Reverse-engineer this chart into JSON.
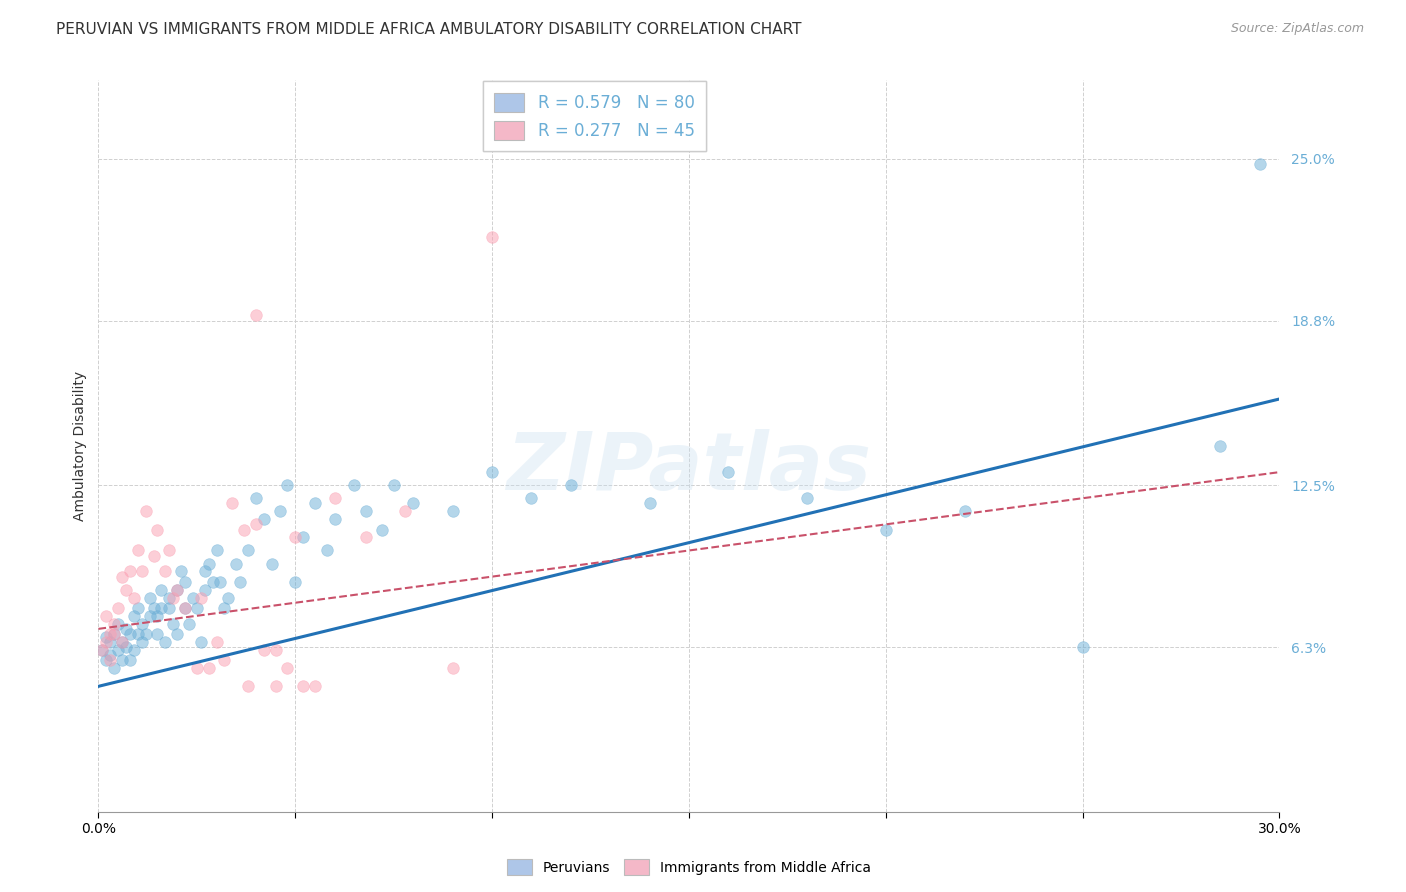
{
  "title": "PERUVIAN VS IMMIGRANTS FROM MIDDLE AFRICA AMBULATORY DISABILITY CORRELATION CHART",
  "source": "Source: ZipAtlas.com",
  "ylabel": "Ambulatory Disability",
  "xlim": [
    0.0,
    0.3
  ],
  "ylim": [
    0.0,
    0.28
  ],
  "ytick_labels": [
    "6.3%",
    "12.5%",
    "18.8%",
    "25.0%"
  ],
  "ytick_values": [
    0.063,
    0.125,
    0.188,
    0.25
  ],
  "legend_entries": [
    {
      "label": "R = 0.579   N = 80",
      "color": "#aec6e8"
    },
    {
      "label": "R = 0.277   N = 45",
      "color": "#f4b8c8"
    }
  ],
  "blue_color": "#6baed6",
  "pink_color": "#fb9eb1",
  "blue_line_color": "#2171b5",
  "pink_line_color": "#c9516a",
  "watermark": "ZIPatlas",
  "blue_scatter": [
    [
      0.001,
      0.062
    ],
    [
      0.002,
      0.058
    ],
    [
      0.002,
      0.067
    ],
    [
      0.003,
      0.06
    ],
    [
      0.003,
      0.065
    ],
    [
      0.004,
      0.055
    ],
    [
      0.004,
      0.068
    ],
    [
      0.005,
      0.062
    ],
    [
      0.005,
      0.072
    ],
    [
      0.006,
      0.058
    ],
    [
      0.006,
      0.065
    ],
    [
      0.007,
      0.07
    ],
    [
      0.007,
      0.063
    ],
    [
      0.008,
      0.068
    ],
    [
      0.008,
      0.058
    ],
    [
      0.009,
      0.075
    ],
    [
      0.009,
      0.062
    ],
    [
      0.01,
      0.068
    ],
    [
      0.01,
      0.078
    ],
    [
      0.011,
      0.065
    ],
    [
      0.011,
      0.072
    ],
    [
      0.012,
      0.068
    ],
    [
      0.013,
      0.075
    ],
    [
      0.013,
      0.082
    ],
    [
      0.014,
      0.078
    ],
    [
      0.015,
      0.068
    ],
    [
      0.015,
      0.075
    ],
    [
      0.016,
      0.085
    ],
    [
      0.016,
      0.078
    ],
    [
      0.017,
      0.065
    ],
    [
      0.018,
      0.082
    ],
    [
      0.018,
      0.078
    ],
    [
      0.019,
      0.072
    ],
    [
      0.02,
      0.068
    ],
    [
      0.02,
      0.085
    ],
    [
      0.021,
      0.092
    ],
    [
      0.022,
      0.088
    ],
    [
      0.022,
      0.078
    ],
    [
      0.023,
      0.072
    ],
    [
      0.024,
      0.082
    ],
    [
      0.025,
      0.078
    ],
    [
      0.026,
      0.065
    ],
    [
      0.027,
      0.092
    ],
    [
      0.027,
      0.085
    ],
    [
      0.028,
      0.095
    ],
    [
      0.029,
      0.088
    ],
    [
      0.03,
      0.1
    ],
    [
      0.031,
      0.088
    ],
    [
      0.032,
      0.078
    ],
    [
      0.033,
      0.082
    ],
    [
      0.035,
      0.095
    ],
    [
      0.036,
      0.088
    ],
    [
      0.038,
      0.1
    ],
    [
      0.04,
      0.12
    ],
    [
      0.042,
      0.112
    ],
    [
      0.044,
      0.095
    ],
    [
      0.046,
      0.115
    ],
    [
      0.048,
      0.125
    ],
    [
      0.05,
      0.088
    ],
    [
      0.052,
      0.105
    ],
    [
      0.055,
      0.118
    ],
    [
      0.058,
      0.1
    ],
    [
      0.06,
      0.112
    ],
    [
      0.065,
      0.125
    ],
    [
      0.068,
      0.115
    ],
    [
      0.072,
      0.108
    ],
    [
      0.075,
      0.125
    ],
    [
      0.08,
      0.118
    ],
    [
      0.09,
      0.115
    ],
    [
      0.1,
      0.13
    ],
    [
      0.11,
      0.12
    ],
    [
      0.12,
      0.125
    ],
    [
      0.14,
      0.118
    ],
    [
      0.16,
      0.13
    ],
    [
      0.18,
      0.12
    ],
    [
      0.2,
      0.108
    ],
    [
      0.22,
      0.115
    ],
    [
      0.25,
      0.063
    ],
    [
      0.285,
      0.14
    ],
    [
      0.295,
      0.248
    ]
  ],
  "pink_scatter": [
    [
      0.001,
      0.062
    ],
    [
      0.002,
      0.065
    ],
    [
      0.002,
      0.075
    ],
    [
      0.003,
      0.068
    ],
    [
      0.003,
      0.058
    ],
    [
      0.004,
      0.072
    ],
    [
      0.004,
      0.068
    ],
    [
      0.005,
      0.078
    ],
    [
      0.006,
      0.065
    ],
    [
      0.006,
      0.09
    ],
    [
      0.007,
      0.085
    ],
    [
      0.008,
      0.092
    ],
    [
      0.009,
      0.082
    ],
    [
      0.01,
      0.1
    ],
    [
      0.011,
      0.092
    ],
    [
      0.012,
      0.115
    ],
    [
      0.014,
      0.098
    ],
    [
      0.015,
      0.108
    ],
    [
      0.017,
      0.092
    ],
    [
      0.018,
      0.1
    ],
    [
      0.019,
      0.082
    ],
    [
      0.02,
      0.085
    ],
    [
      0.022,
      0.078
    ],
    [
      0.025,
      0.055
    ],
    [
      0.026,
      0.082
    ],
    [
      0.028,
      0.055
    ],
    [
      0.03,
      0.065
    ],
    [
      0.032,
      0.058
    ],
    [
      0.034,
      0.118
    ],
    [
      0.037,
      0.108
    ],
    [
      0.04,
      0.11
    ],
    [
      0.042,
      0.062
    ],
    [
      0.045,
      0.062
    ],
    [
      0.048,
      0.055
    ],
    [
      0.052,
      0.048
    ],
    [
      0.055,
      0.048
    ],
    [
      0.06,
      0.12
    ],
    [
      0.068,
      0.105
    ],
    [
      0.078,
      0.115
    ],
    [
      0.09,
      0.055
    ],
    [
      0.1,
      0.22
    ],
    [
      0.04,
      0.19
    ],
    [
      0.05,
      0.105
    ],
    [
      0.038,
      0.048
    ],
    [
      0.045,
      0.048
    ]
  ],
  "blue_line_x": [
    0.0,
    0.3
  ],
  "blue_line_y": [
    0.048,
    0.158
  ],
  "pink_line_x": [
    0.0,
    0.3
  ],
  "pink_line_y": [
    0.07,
    0.13
  ],
  "background_color": "#ffffff",
  "grid_color": "#d0d0d0",
  "title_fontsize": 11,
  "source_fontsize": 9,
  "axis_label_fontsize": 10,
  "tick_fontsize": 10
}
